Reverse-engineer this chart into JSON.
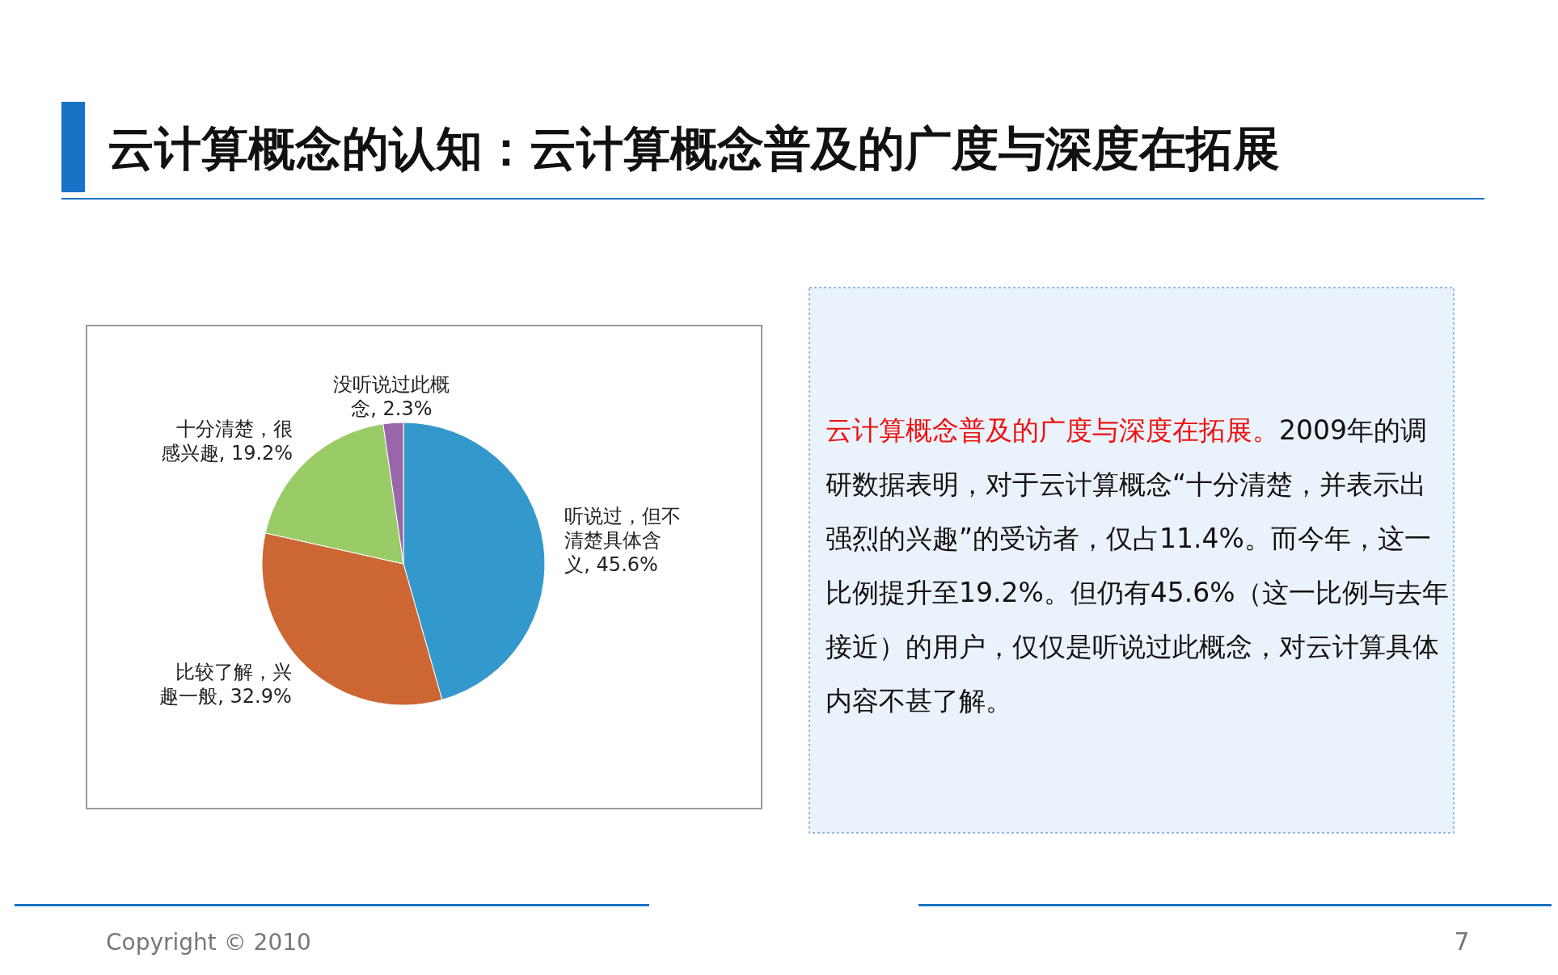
{
  "chart_data": [
    {
      "type": "pie",
      "title": "云计算概念的认知：云计算概念普及的广度与深度在拓展",
      "categories": [
        "听说过，但不清楚具体含义",
        "比较了解，兴趣一般",
        "十分清楚，很感兴趣",
        "没听说过此概念"
      ],
      "values": [
        45.6,
        32.9,
        19.2,
        2.3
      ],
      "value_labels": [
        "45.6%",
        "32.9%",
        "19.2%",
        "2.3%"
      ],
      "colors": [
        "#3399cc",
        "#cc6633",
        "#99cc66",
        "#9966aa"
      ],
      "annotations": [
        "Copyright © 2010",
        "7"
      ]
    },
    {
      "type": "other",
      "annotations": [
        "云计算概念普及的广度与深度在拓展。",
        "2009年的调研数据表明，对于云计算概念“十分清楚，并表示出强烈的兴趣”的受访者，仅占11.4%。而今年，这一比例提升至19.2%。但仍有45.6%（这一比例与去年接近）的用户，仅仅是听说过此概念，对云计算具体内容不甚了解。"
      ],
      "colors": [
        "#ee1111",
        "#111111"
      ]
    }
  ]
}
